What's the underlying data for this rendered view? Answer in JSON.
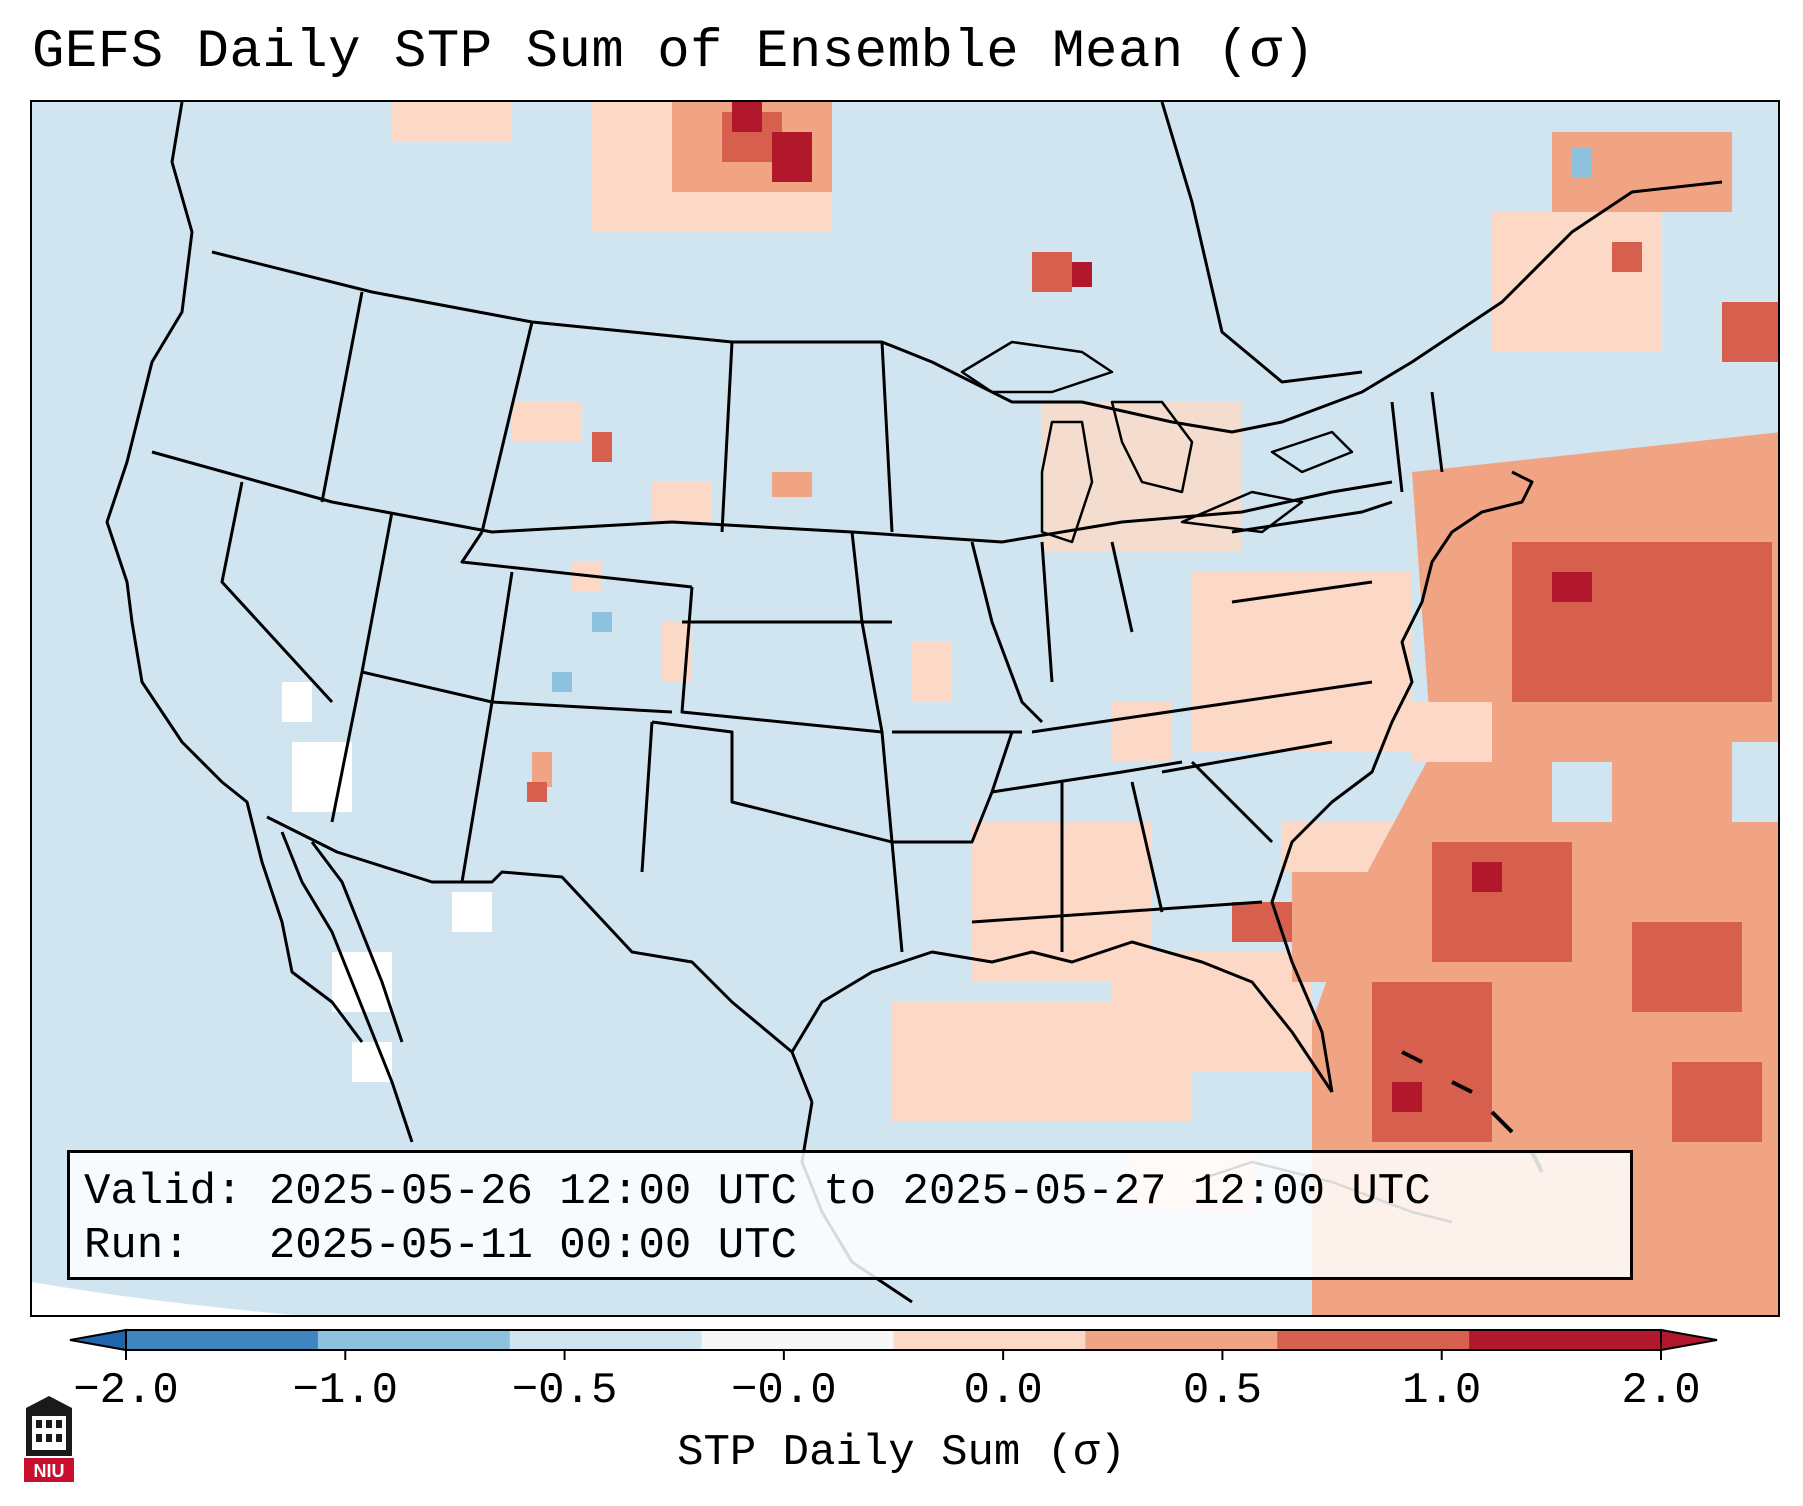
{
  "title": "GEFS Daily STP Sum of Ensemble Mean (σ)",
  "info": {
    "valid_line": "Valid: 2025-05-26 12:00 UTC to 2025-05-27 12:00 UTC",
    "run_line": "Run:   2025-05-11 00:00 UTC"
  },
  "colorbar": {
    "label": "STP Daily Sum (σ)",
    "ticks": [
      "−2.0",
      "−1.0",
      "−0.5",
      "−0.0",
      "0.0",
      "0.5",
      "1.0",
      "2.0"
    ],
    "colors": [
      "#3f86c1",
      "#8ec1de",
      "#d1e5f0",
      "#f7f7f7",
      "#fcd9c6",
      "#f1a483",
      "#d6604d",
      "#b2182b"
    ],
    "under_color": "#2166ac",
    "over_color": "#b2182b"
  },
  "map": {
    "ocean_color": "#d1e5f0",
    "land_color": "#d1e5f0",
    "border_color": "#000000"
  },
  "logo": {
    "text": "NIU",
    "color": "#c8102e"
  }
}
